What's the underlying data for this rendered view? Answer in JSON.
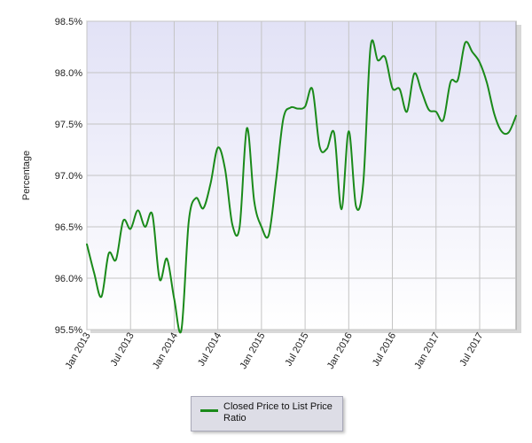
{
  "colors": {
    "line": "#1a8a1a",
    "plot_bg_top": "#e2e2f6",
    "plot_bg_bottom": "#ffffff",
    "grid": "#c4c4c4"
  },
  "chart_data": {
    "type": "line",
    "title": "",
    "xlabel": "",
    "ylabel": "Percentage",
    "ylim": [
      95.5,
      98.5
    ],
    "y_ticks": [
      "98.5%",
      "98.0%",
      "97.5%",
      "97.0%",
      "96.5%",
      "96.0%",
      "95.5%"
    ],
    "y_tick_values": [
      98.5,
      98.0,
      97.5,
      97.0,
      96.5,
      96.0,
      95.5
    ],
    "x_ticks": [
      "Jan 2013",
      "Jul 2013",
      "Jan 2014",
      "Jul 2014",
      "Jan 2015",
      "Jul 2015",
      "Jan 2016",
      "Jul 2016",
      "Jan 2017",
      "Jul 2017"
    ],
    "x_tick_months": [
      0,
      6,
      12,
      18,
      24,
      30,
      36,
      42,
      48,
      54
    ],
    "x_range_months": [
      0,
      59
    ],
    "grid": true,
    "legend_position": "bottom-center",
    "series": [
      {
        "name": "Closed Price to List Price Ratio",
        "x": [
          "2013-01",
          "2013-02",
          "2013-03",
          "2013-04",
          "2013-05",
          "2013-06",
          "2013-07",
          "2013-08",
          "2013-09",
          "2013-10",
          "2013-11",
          "2013-12",
          "2014-01",
          "2014-02",
          "2014-03",
          "2014-04",
          "2014-05",
          "2014-06",
          "2014-07",
          "2014-08",
          "2014-09",
          "2014-10",
          "2014-11",
          "2014-12",
          "2015-01",
          "2015-02",
          "2015-03",
          "2015-04",
          "2015-05",
          "2015-06",
          "2015-07",
          "2015-08",
          "2015-09",
          "2015-10",
          "2015-11",
          "2015-12",
          "2016-01",
          "2016-02",
          "2016-03",
          "2016-04",
          "2016-05",
          "2016-06",
          "2016-07",
          "2016-08",
          "2016-09",
          "2016-10",
          "2016-11",
          "2016-12",
          "2017-01",
          "2017-02",
          "2017-03",
          "2017-04",
          "2017-05",
          "2017-06",
          "2017-07",
          "2017-08",
          "2017-09",
          "2017-10",
          "2017-11",
          "2017-12"
        ],
        "values": [
          96.33,
          96.05,
          95.82,
          96.24,
          96.18,
          96.56,
          96.48,
          96.66,
          96.5,
          96.62,
          95.99,
          96.19,
          95.8,
          95.5,
          96.55,
          96.78,
          96.68,
          96.92,
          97.27,
          97.06,
          96.52,
          96.5,
          97.46,
          96.75,
          96.5,
          96.42,
          96.95,
          97.55,
          97.66,
          97.65,
          97.67,
          97.84,
          97.28,
          97.26,
          97.41,
          96.67,
          97.43,
          96.7,
          96.93,
          98.25,
          98.12,
          98.15,
          97.85,
          97.84,
          97.62,
          97.99,
          97.82,
          97.64,
          97.62,
          97.54,
          97.91,
          97.93,
          98.29,
          98.2,
          98.1,
          97.9,
          97.6,
          97.43,
          97.42,
          97.58
        ]
      }
    ]
  }
}
